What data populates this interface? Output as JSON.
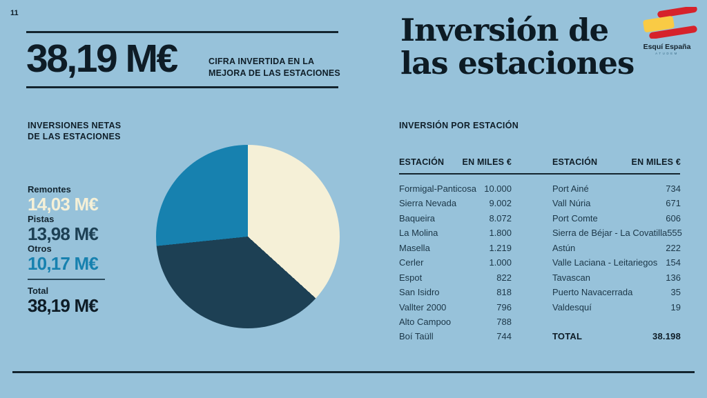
{
  "page_number": "11",
  "colors": {
    "background": "#97C2DA",
    "ink": "#0E1C26",
    "pie_cream": "#F5F0D7",
    "pie_navy": "#1D4054",
    "pie_teal": "#1781AF",
    "logo_red": "#D6222B",
    "logo_yellow": "#F9CB45"
  },
  "header": {
    "big_number": "38,19 M€",
    "caption_line1": "CIFRA INVERTIDA EN LA",
    "caption_line2": "MEJORA DE LAS ESTACIONES"
  },
  "title": {
    "line1": "Inversión de",
    "line2": "las estaciones"
  },
  "logo": {
    "name": "Esquí España",
    "subtext": "ATUDEM"
  },
  "left_section": {
    "label_line1": "INVERSIONES NETAS",
    "label_line2": "DE LAS ESTACIONES",
    "legend": [
      {
        "label": "Remontes",
        "value": "14,03 M€",
        "color": "#F5F0D7"
      },
      {
        "label": "Pistas",
        "value": "13,98 M€",
        "color": "#1D4054"
      },
      {
        "label": "Otros",
        "value": "10,17 M€",
        "color": "#1781AF"
      }
    ],
    "total_label": "Total",
    "total_value": "38,19 M€"
  },
  "chart_data": {
    "type": "pie",
    "title": "Inversiones netas de las estaciones",
    "categories": [
      "Remontes",
      "Pistas",
      "Otros"
    ],
    "values": [
      14.03,
      13.98,
      10.17
    ],
    "unit": "M€",
    "total": 38.19,
    "colors": [
      "#F5F0D7",
      "#1D4054",
      "#1781AF"
    ],
    "start_angle_deg": 0,
    "direction": "clockwise",
    "legend_position": "left"
  },
  "table": {
    "section_label": "INVERSIÓN POR ESTACIÓN",
    "col_station": "ESTACIÓN",
    "col_value": "EN MILES €",
    "left_count": 11,
    "rows": [
      {
        "station": "Formigal-Panticosa",
        "value": "10.000"
      },
      {
        "station": "Sierra Nevada",
        "value": "9.002"
      },
      {
        "station": "Baqueira",
        "value": "8.072"
      },
      {
        "station": "La Molina",
        "value": "1.800"
      },
      {
        "station": "Masella",
        "value": "1.219"
      },
      {
        "station": "Cerler",
        "value": "1.000"
      },
      {
        "station": "Espot",
        "value": "822"
      },
      {
        "station": "San Isidro",
        "value": "818"
      },
      {
        "station": "Vallter 2000",
        "value": "796"
      },
      {
        "station": "Alto Campoo",
        "value": "788"
      },
      {
        "station": "Boí Taüll",
        "value": "744"
      },
      {
        "station": "Port Ainé",
        "value": "734"
      },
      {
        "station": "Vall Núria",
        "value": "671"
      },
      {
        "station": "Port Comte",
        "value": "606"
      },
      {
        "station": "Sierra de Béjar - La Covatilla",
        "value": "555"
      },
      {
        "station": "Astún",
        "value": "222"
      },
      {
        "station": "Valle Laciana - Leitariegos",
        "value": "154"
      },
      {
        "station": "Tavascan",
        "value": "136"
      },
      {
        "station": "Puerto Navacerrada",
        "value": "35"
      },
      {
        "station": "Valdesquí",
        "value": "19"
      }
    ],
    "total_label": "TOTAL",
    "total_value": "38.198"
  }
}
